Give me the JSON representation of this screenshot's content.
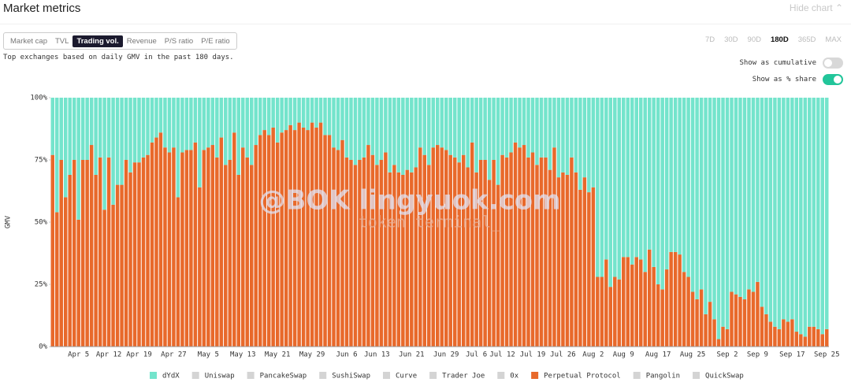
{
  "header": {
    "title": "Market metrics",
    "hide_chart": "Hide chart"
  },
  "metric_tabs": {
    "items": [
      "Market cap",
      "TVL",
      "Trading vol.",
      "Revenue",
      "P/S ratio",
      "P/E ratio"
    ],
    "active": 2
  },
  "period_tabs": {
    "items": [
      "7D",
      "30D",
      "90D",
      "180D",
      "365D",
      "MAX"
    ],
    "active": 3
  },
  "description": "Top exchanges based on daily GMV in the past 180 days.",
  "toggles": [
    {
      "label": "Show as cumulative",
      "on": false
    },
    {
      "label": "Show as % share",
      "on": true
    }
  ],
  "watermark": [
    "@BOK lingyuok.com",
    "token terminal_"
  ],
  "chart_data": {
    "type": "bar",
    "stacked": true,
    "ylabel": "GMV",
    "ylim": [
      0,
      100
    ],
    "yticks": [
      {
        "value": 0,
        "label": "0%"
      },
      {
        "value": 25,
        "label": "25%"
      },
      {
        "value": 50,
        "label": "50%"
      },
      {
        "value": 75,
        "label": "75%"
      },
      {
        "value": 100,
        "label": "100%"
      }
    ],
    "categories": [
      null,
      null,
      null,
      null,
      null,
      null,
      "Apr 5",
      null,
      null,
      null,
      null,
      null,
      null,
      "Apr 12",
      null,
      null,
      null,
      null,
      null,
      null,
      "Apr 19",
      null,
      null,
      null,
      null,
      null,
      null,
      null,
      "Apr 27",
      null,
      null,
      null,
      null,
      null,
      null,
      null,
      "May 5",
      null,
      null,
      null,
      null,
      null,
      null,
      null,
      "May 13",
      null,
      null,
      null,
      null,
      null,
      null,
      null,
      "May 21",
      null,
      null,
      null,
      null,
      null,
      null,
      null,
      "May 29",
      null,
      null,
      null,
      null,
      null,
      null,
      null,
      "Jun 6",
      null,
      null,
      null,
      null,
      null,
      null,
      "Jun 13",
      null,
      null,
      null,
      null,
      null,
      null,
      null,
      "Jun 21",
      null,
      null,
      null,
      null,
      null,
      null,
      null,
      "Jun 29",
      null,
      null,
      null,
      null,
      null,
      null,
      "Jul 6",
      null,
      null,
      null,
      null,
      null,
      "Jul 12",
      null,
      null,
      null,
      null,
      null,
      null,
      "Jul 19",
      null,
      null,
      null,
      null,
      null,
      null,
      "Jul 26",
      null,
      null,
      null,
      null,
      null,
      null,
      "Aug 2",
      null,
      null,
      null,
      null,
      null,
      null,
      "Aug 9",
      null,
      null,
      null,
      null,
      null,
      null,
      null,
      "Aug 17",
      null,
      null,
      null,
      null,
      null,
      null,
      null,
      "Aug 25",
      null,
      null,
      null,
      null,
      null,
      null,
      null,
      "Sep 2",
      null,
      null,
      null,
      null,
      null,
      null,
      "Sep 9",
      null,
      null,
      null,
      null,
      null,
      null,
      null,
      "Sep 17",
      null,
      null,
      null,
      null,
      null,
      null,
      null,
      "Sep 25"
    ],
    "series": [
      {
        "name": "dYdX",
        "color": "#74e4cc",
        "values": [
          23,
          46,
          25,
          40,
          31,
          25,
          49,
          25,
          25,
          19,
          31,
          24,
          45,
          24,
          43,
          35,
          35,
          25,
          30,
          26,
          26,
          24,
          23,
          18,
          16,
          14,
          20,
          22,
          20,
          40,
          22,
          21,
          21,
          18,
          36,
          21,
          20,
          19,
          24,
          16,
          27,
          25,
          14,
          31,
          20,
          24,
          27,
          19,
          15,
          13,
          15,
          12,
          18,
          14,
          13,
          11,
          13,
          10,
          12,
          13,
          10,
          12,
          10,
          15,
          15,
          20,
          21,
          17,
          24,
          25,
          27,
          25,
          24,
          19,
          23,
          27,
          25,
          22,
          30,
          27,
          30,
          31,
          29,
          30,
          28,
          20,
          23,
          27,
          20,
          19,
          20,
          21,
          23,
          24,
          26,
          23,
          28,
          18,
          30,
          25,
          25,
          33,
          25,
          35,
          23,
          24,
          22,
          18,
          20,
          19,
          24,
          22,
          27,
          24,
          24,
          29,
          20,
          32,
          30,
          31,
          24,
          30,
          37,
          32,
          38,
          36,
          72,
          72,
          65,
          76,
          72,
          73,
          64,
          64,
          67,
          64,
          65,
          70,
          61,
          68,
          75,
          77,
          69,
          62,
          62,
          63,
          70,
          72,
          78,
          81,
          77,
          87,
          82,
          89,
          97,
          92,
          93,
          78,
          79,
          80,
          81,
          77,
          78,
          74,
          84,
          87,
          90,
          92,
          93,
          89,
          90,
          89,
          94,
          95,
          96,
          92,
          92,
          93,
          95,
          93
        ]
      },
      {
        "name": "Perpetual Protocol",
        "color": "#e8692b",
        "values": [
          77,
          54,
          75,
          60,
          69,
          75,
          51,
          75,
          75,
          81,
          69,
          76,
          55,
          76,
          57,
          65,
          65,
          75,
          70,
          74,
          74,
          76,
          77,
          82,
          84,
          86,
          80,
          78,
          80,
          60,
          78,
          79,
          79,
          82,
          64,
          79,
          80,
          81,
          76,
          84,
          73,
          75,
          86,
          69,
          80,
          76,
          73,
          81,
          85,
          87,
          85,
          88,
          82,
          86,
          87,
          89,
          87,
          90,
          88,
          87,
          90,
          88,
          90,
          85,
          85,
          80,
          79,
          83,
          76,
          75,
          73,
          75,
          76,
          81,
          77,
          73,
          75,
          78,
          70,
          73,
          70,
          69,
          71,
          70,
          72,
          80,
          77,
          73,
          80,
          81,
          80,
          79,
          77,
          76,
          74,
          77,
          72,
          82,
          70,
          75,
          75,
          67,
          75,
          65,
          77,
          76,
          78,
          82,
          80,
          81,
          76,
          78,
          73,
          76,
          76,
          71,
          80,
          68,
          70,
          69,
          76,
          70,
          63,
          68,
          62,
          64,
          28,
          28,
          35,
          24,
          28,
          27,
          36,
          36,
          33,
          36,
          35,
          30,
          39,
          32,
          25,
          23,
          31,
          38,
          38,
          37,
          30,
          28,
          22,
          19,
          23,
          13,
          18,
          11,
          3,
          8,
          7,
          22,
          21,
          20,
          19,
          23,
          22,
          26,
          16,
          13,
          10,
          8,
          7,
          11,
          10,
          11,
          6,
          5,
          4,
          8,
          8,
          7,
          5,
          7
        ]
      }
    ],
    "legend": [
      {
        "name": "dYdX",
        "color": "#74e4cc"
      },
      {
        "name": "Uniswap",
        "color": "#d4d4d4"
      },
      {
        "name": "PancakeSwap",
        "color": "#d4d4d4"
      },
      {
        "name": "SushiSwap",
        "color": "#d4d4d4"
      },
      {
        "name": "Curve",
        "color": "#d4d4d4"
      },
      {
        "name": "Trader Joe",
        "color": "#d4d4d4"
      },
      {
        "name": "0x",
        "color": "#d4d4d4"
      },
      {
        "name": "Perpetual Protocol",
        "color": "#e8692b"
      },
      {
        "name": "Pangolin",
        "color": "#d4d4d4"
      },
      {
        "name": "QuickSwap",
        "color": "#d4d4d4"
      }
    ]
  }
}
